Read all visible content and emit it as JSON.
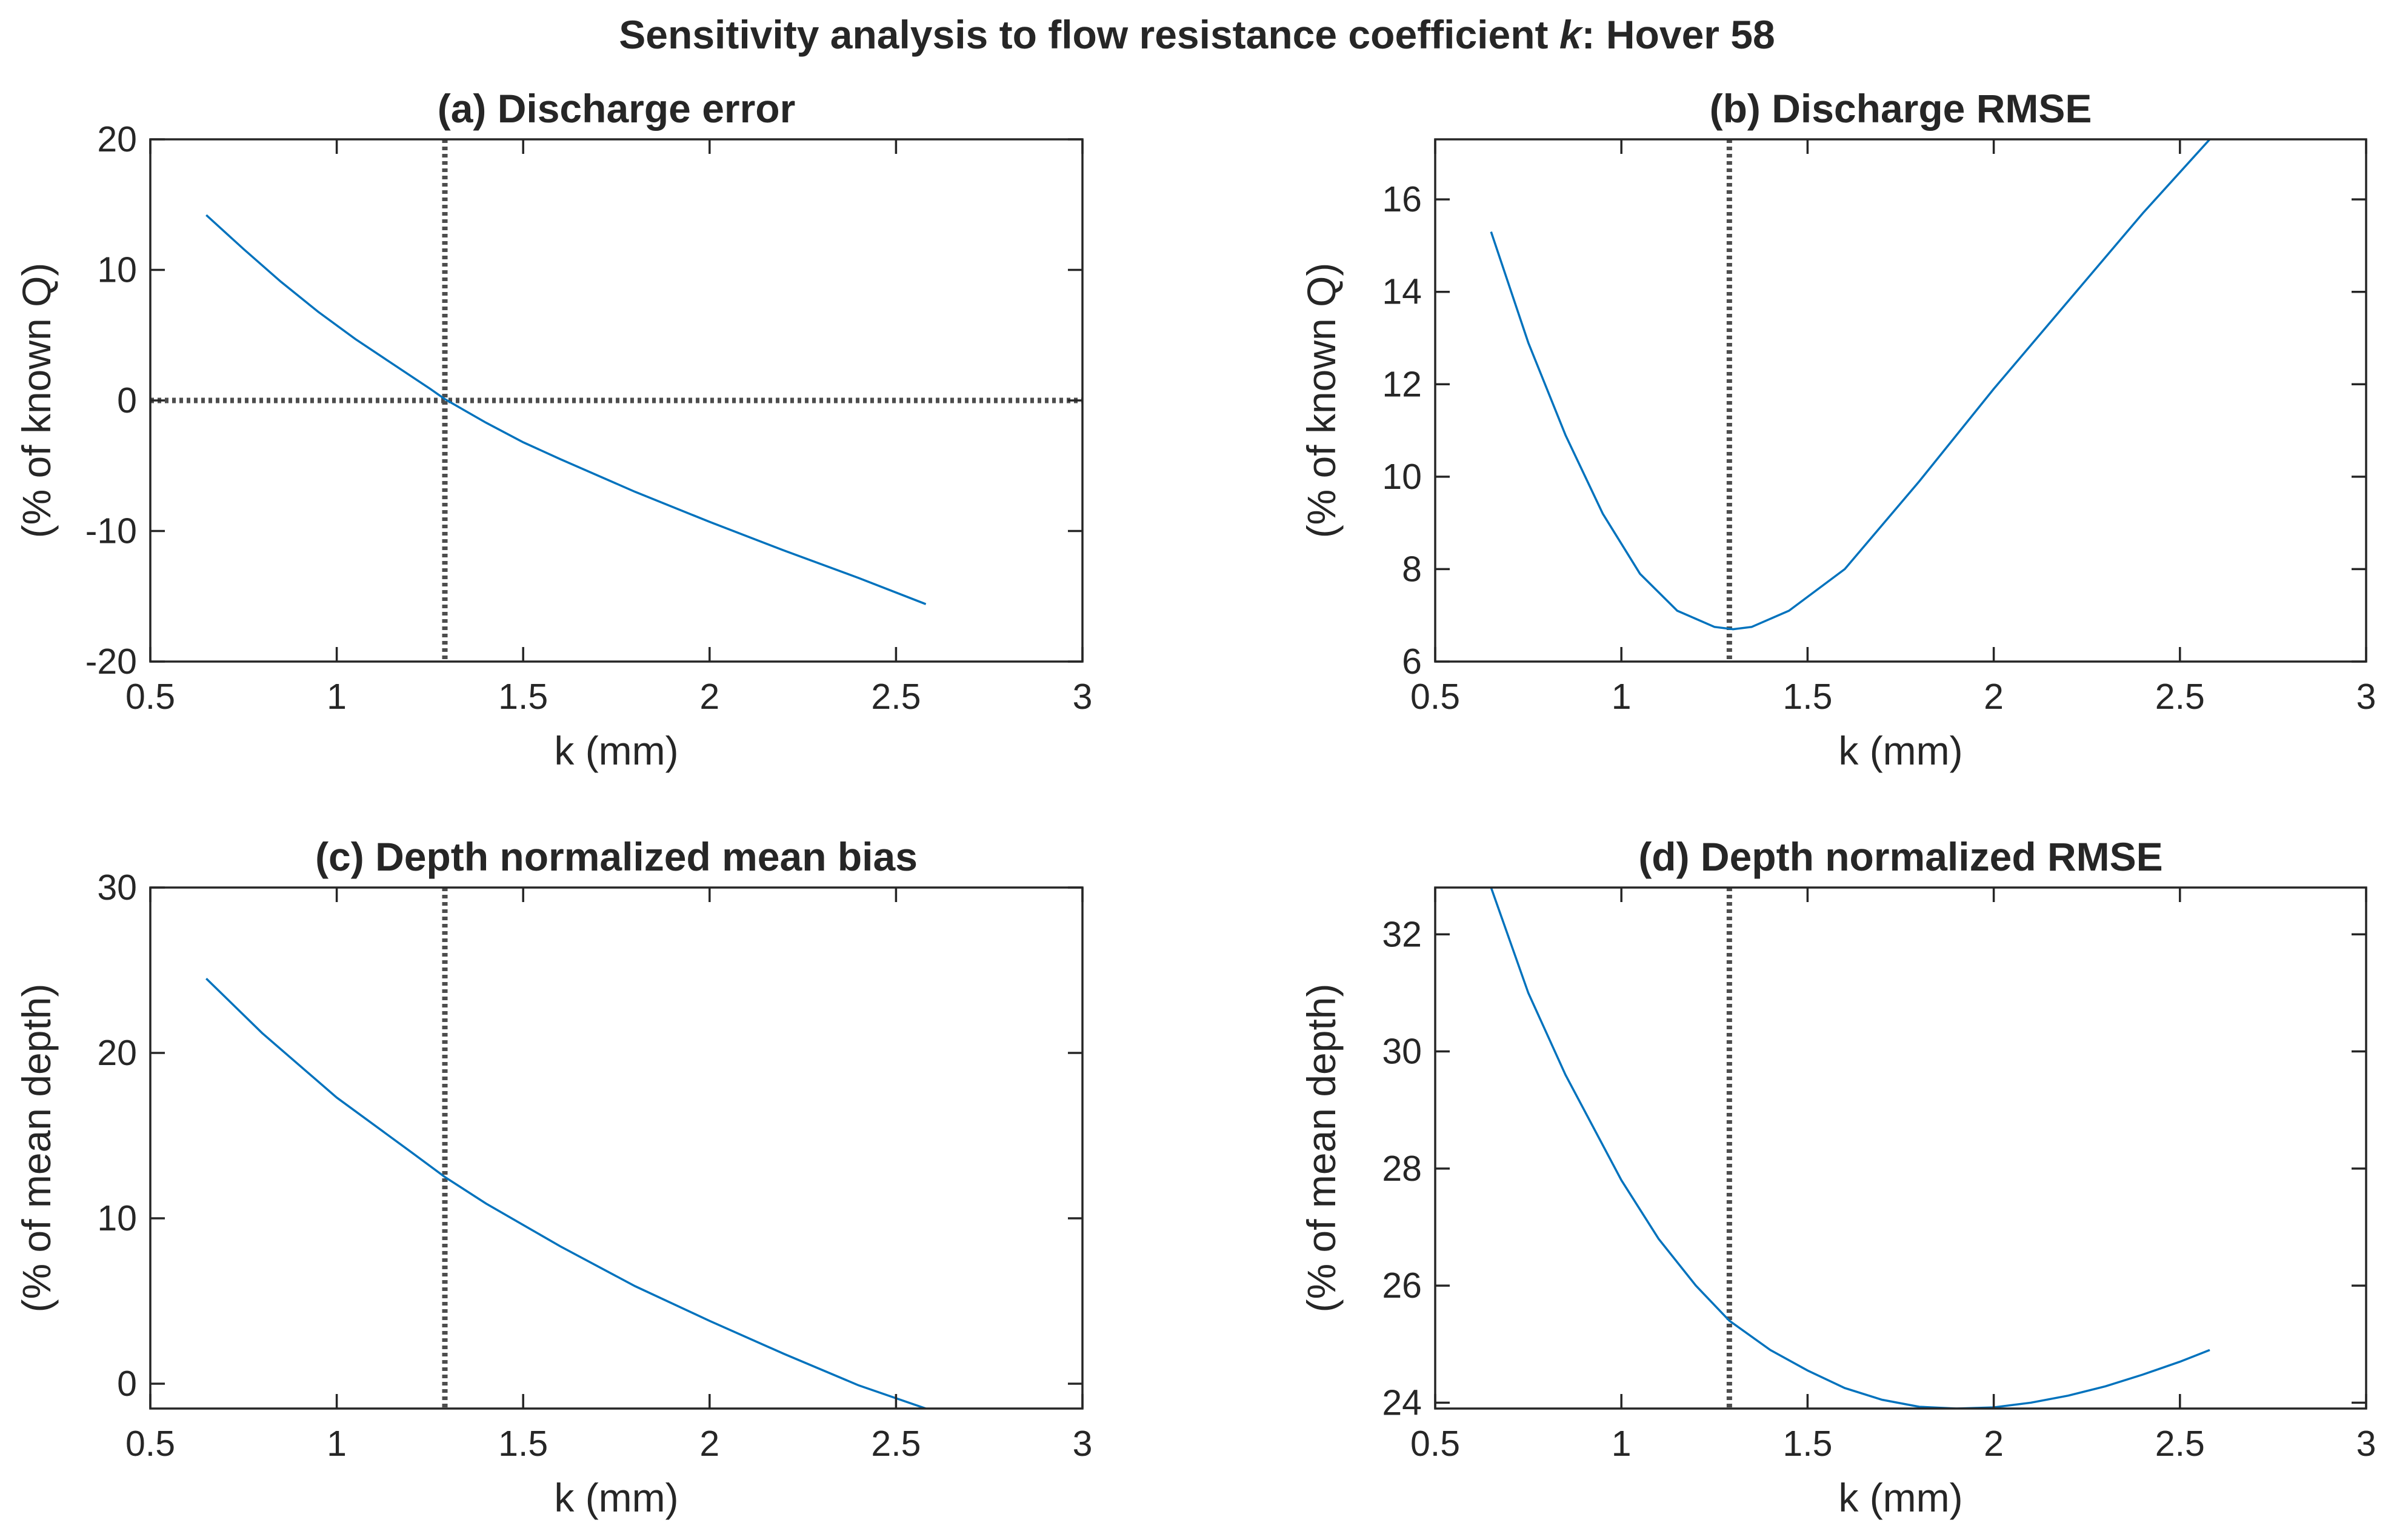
{
  "figure_title": {
    "prefix": "Sensitivity analysis to flow resistance coefficient ",
    "italic": "k",
    "suffix": ": Hover 58"
  },
  "colors": {
    "series": "#0072bd",
    "reference": "#4d4d4d",
    "axes": "#262626"
  },
  "chart_data": [
    {
      "type": "line",
      "title": "(a) Discharge error",
      "xlabel": "k (mm)",
      "ylabel": "(% of known Q)",
      "xlim": [
        0.5,
        3
      ],
      "ylim": [
        -20,
        20
      ],
      "xticks": [
        0.5,
        1,
        1.5,
        2,
        2.5,
        3
      ],
      "xtick_labels": [
        "0.5",
        "1",
        "1.5",
        "2",
        "2.5",
        "3"
      ],
      "yticks": [
        -20,
        -10,
        0,
        10,
        20
      ],
      "ytick_labels": [
        "-20",
        "-10",
        "0",
        "10",
        "20"
      ],
      "vline_x": 1.29,
      "hline_y": 0,
      "series": [
        {
          "name": "Discharge error",
          "x": [
            0.65,
            0.75,
            0.85,
            0.95,
            1.05,
            1.15,
            1.25,
            1.29,
            1.4,
            1.5,
            1.6,
            1.8,
            2.0,
            2.2,
            2.4,
            2.58
          ],
          "y": [
            14.2,
            11.6,
            9.1,
            6.8,
            4.7,
            2.8,
            0.9,
            0.1,
            -1.7,
            -3.2,
            -4.5,
            -7.0,
            -9.3,
            -11.5,
            -13.6,
            -15.6
          ]
        }
      ]
    },
    {
      "type": "line",
      "title": "(b) Discharge RMSE",
      "xlabel": "k (mm)",
      "ylabel": "(% of known Q)",
      "xlim": [
        0.5,
        3
      ],
      "ylim": [
        6,
        17.3
      ],
      "xticks": [
        0.5,
        1,
        1.5,
        2,
        2.5,
        3
      ],
      "xtick_labels": [
        "0.5",
        "1",
        "1.5",
        "2",
        "2.5",
        "3"
      ],
      "yticks": [
        6,
        8,
        10,
        12,
        14,
        16
      ],
      "ytick_labels": [
        "6",
        "8",
        "10",
        "12",
        "14",
        "16"
      ],
      "vline_x": 1.29,
      "hline_y": null,
      "series": [
        {
          "name": "Discharge RMSE",
          "x": [
            0.65,
            0.75,
            0.85,
            0.95,
            1.05,
            1.15,
            1.25,
            1.3,
            1.35,
            1.45,
            1.6,
            1.8,
            2.0,
            2.2,
            2.4,
            2.58
          ],
          "y": [
            15.3,
            12.9,
            10.9,
            9.2,
            7.9,
            7.1,
            6.75,
            6.7,
            6.75,
            7.1,
            8.0,
            9.9,
            11.9,
            13.8,
            15.7,
            17.3
          ]
        }
      ]
    },
    {
      "type": "line",
      "title": "(c) Depth normalized mean bias",
      "xlabel": "k (mm)",
      "ylabel": "(% of mean depth)",
      "xlim": [
        0.5,
        3
      ],
      "ylim": [
        -1.5,
        30
      ],
      "xticks": [
        0.5,
        1,
        1.5,
        2,
        2.5,
        3
      ],
      "xtick_labels": [
        "0.5",
        "1",
        "1.5",
        "2",
        "2.5",
        "3"
      ],
      "yticks": [
        0,
        10,
        20,
        30
      ],
      "ytick_labels": [
        "0",
        "10",
        "20",
        "30"
      ],
      "vline_x": 1.29,
      "hline_y": null,
      "series": [
        {
          "name": "Depth normalized mean bias",
          "x": [
            0.65,
            0.8,
            1.0,
            1.2,
            1.29,
            1.4,
            1.6,
            1.8,
            2.0,
            2.2,
            2.4,
            2.58
          ],
          "y": [
            24.5,
            21.2,
            17.3,
            14.0,
            12.5,
            10.9,
            8.3,
            5.9,
            3.8,
            1.8,
            -0.1,
            -1.5
          ]
        }
      ]
    },
    {
      "type": "line",
      "title": "(d) Depth normalized RMSE",
      "xlabel": "k (mm)",
      "ylabel": "(% of mean depth)",
      "xlim": [
        0.5,
        3
      ],
      "ylim": [
        23.9,
        32.8
      ],
      "xticks": [
        0.5,
        1,
        1.5,
        2,
        2.5,
        3
      ],
      "xtick_labels": [
        "0.5",
        "1",
        "1.5",
        "2",
        "2.5",
        "3"
      ],
      "yticks": [
        24,
        26,
        28,
        30,
        32
      ],
      "ytick_labels": [
        "24",
        "26",
        "28",
        "30",
        "32"
      ],
      "vline_x": 1.29,
      "hline_y": null,
      "series": [
        {
          "name": "Depth normalized RMSE",
          "x": [
            0.65,
            0.75,
            0.85,
            1.0,
            1.1,
            1.2,
            1.29,
            1.4,
            1.5,
            1.6,
            1.7,
            1.8,
            1.9,
            2.0,
            2.1,
            2.2,
            2.3,
            2.4,
            2.5,
            2.58
          ],
          "y": [
            32.8,
            31.0,
            29.6,
            27.8,
            26.8,
            26.0,
            25.4,
            24.9,
            24.55,
            24.25,
            24.05,
            23.93,
            23.9,
            23.92,
            24.0,
            24.12,
            24.28,
            24.48,
            24.7,
            24.9
          ]
        }
      ]
    }
  ]
}
